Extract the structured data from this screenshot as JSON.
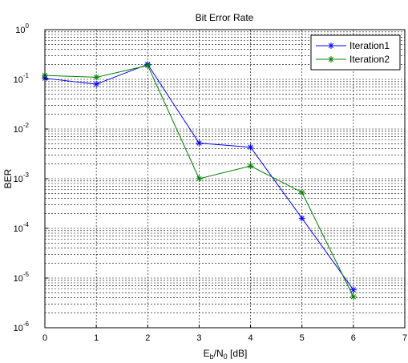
{
  "chart_data": {
    "type": "line",
    "title": "Bit Error Rate",
    "xlabel": {
      "base": "E",
      "sub1": "b",
      "mid": "/N",
      "sub2": "0",
      "tail": " [dB]"
    },
    "ylabel": "BER",
    "xlim": [
      0,
      7
    ],
    "ylim": [
      1e-06,
      1
    ],
    "yscale": "log",
    "grid": true,
    "legend_position": "top-right",
    "x_ticks": [
      "0",
      "1",
      "2",
      "3",
      "4",
      "5",
      "6",
      "7"
    ],
    "y_ticks": [
      {
        "base": "10",
        "exp": "0"
      },
      {
        "base": "10",
        "exp": "-1"
      },
      {
        "base": "10",
        "exp": "-2"
      },
      {
        "base": "10",
        "exp": "-3"
      },
      {
        "base": "10",
        "exp": "-4"
      },
      {
        "base": "10",
        "exp": "-5"
      },
      {
        "base": "10",
        "exp": "-6"
      }
    ],
    "series": [
      {
        "name": "Iteration1",
        "color": "#0000ff",
        "marker": "asterisk",
        "x": [
          0,
          1,
          2,
          3,
          4,
          5,
          6
        ],
        "y": [
          0.105,
          0.08,
          0.2,
          0.0052,
          0.0043,
          0.00016,
          5.8e-06
        ]
      },
      {
        "name": "Iteration2",
        "color": "#008000",
        "marker": "asterisk",
        "x": [
          0,
          1,
          2,
          3,
          4,
          5,
          6
        ],
        "y": [
          0.12,
          0.11,
          0.19,
          0.001,
          0.0018,
          0.00053,
          4.2e-06
        ]
      }
    ]
  }
}
